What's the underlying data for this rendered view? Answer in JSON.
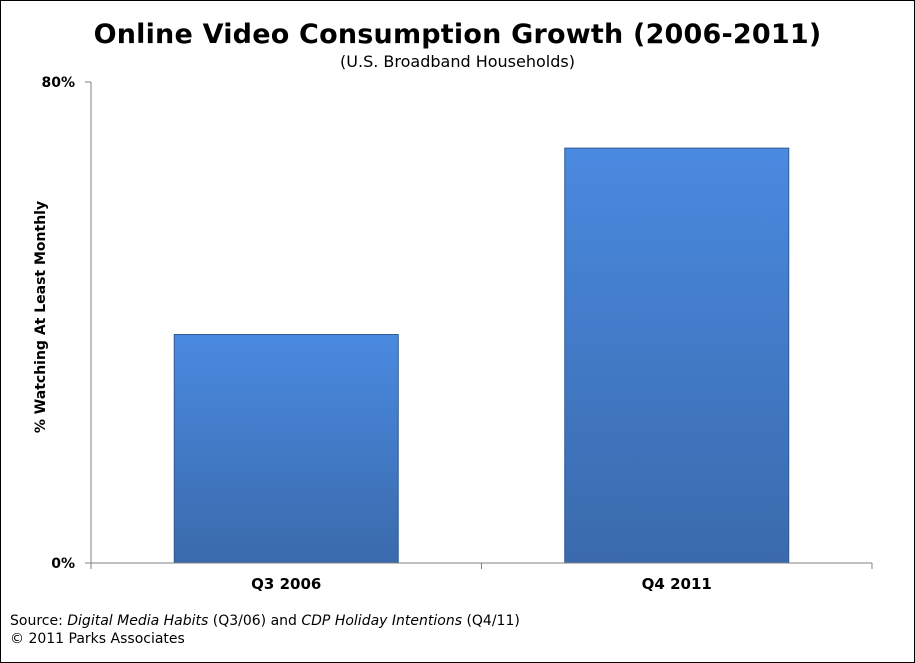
{
  "chart_data": {
    "type": "bar",
    "title": "Online Video Consumption Growth (2006-2011)",
    "subtitle": "(U.S. Broadband Households)",
    "ylabel": "% Watching At Least Monthly",
    "xlabel": "",
    "categories": [
      "Q3 2006",
      "Q4 2011"
    ],
    "values": [
      38,
      69
    ],
    "ylim": [
      0,
      80
    ],
    "y_tick_labels": [
      "0%",
      "80%"
    ],
    "grid": false,
    "legend": "none",
    "bar_color": "#4a86d2"
  },
  "source": {
    "prefix": "Source: ",
    "ref1": "Digital Media Habits",
    "mid1": " (Q3/06) and ",
    "ref2": "CDP Holiday Intentions",
    "mid2": " (Q4/11)",
    "copyright": "© 2011 Parks Associates"
  }
}
